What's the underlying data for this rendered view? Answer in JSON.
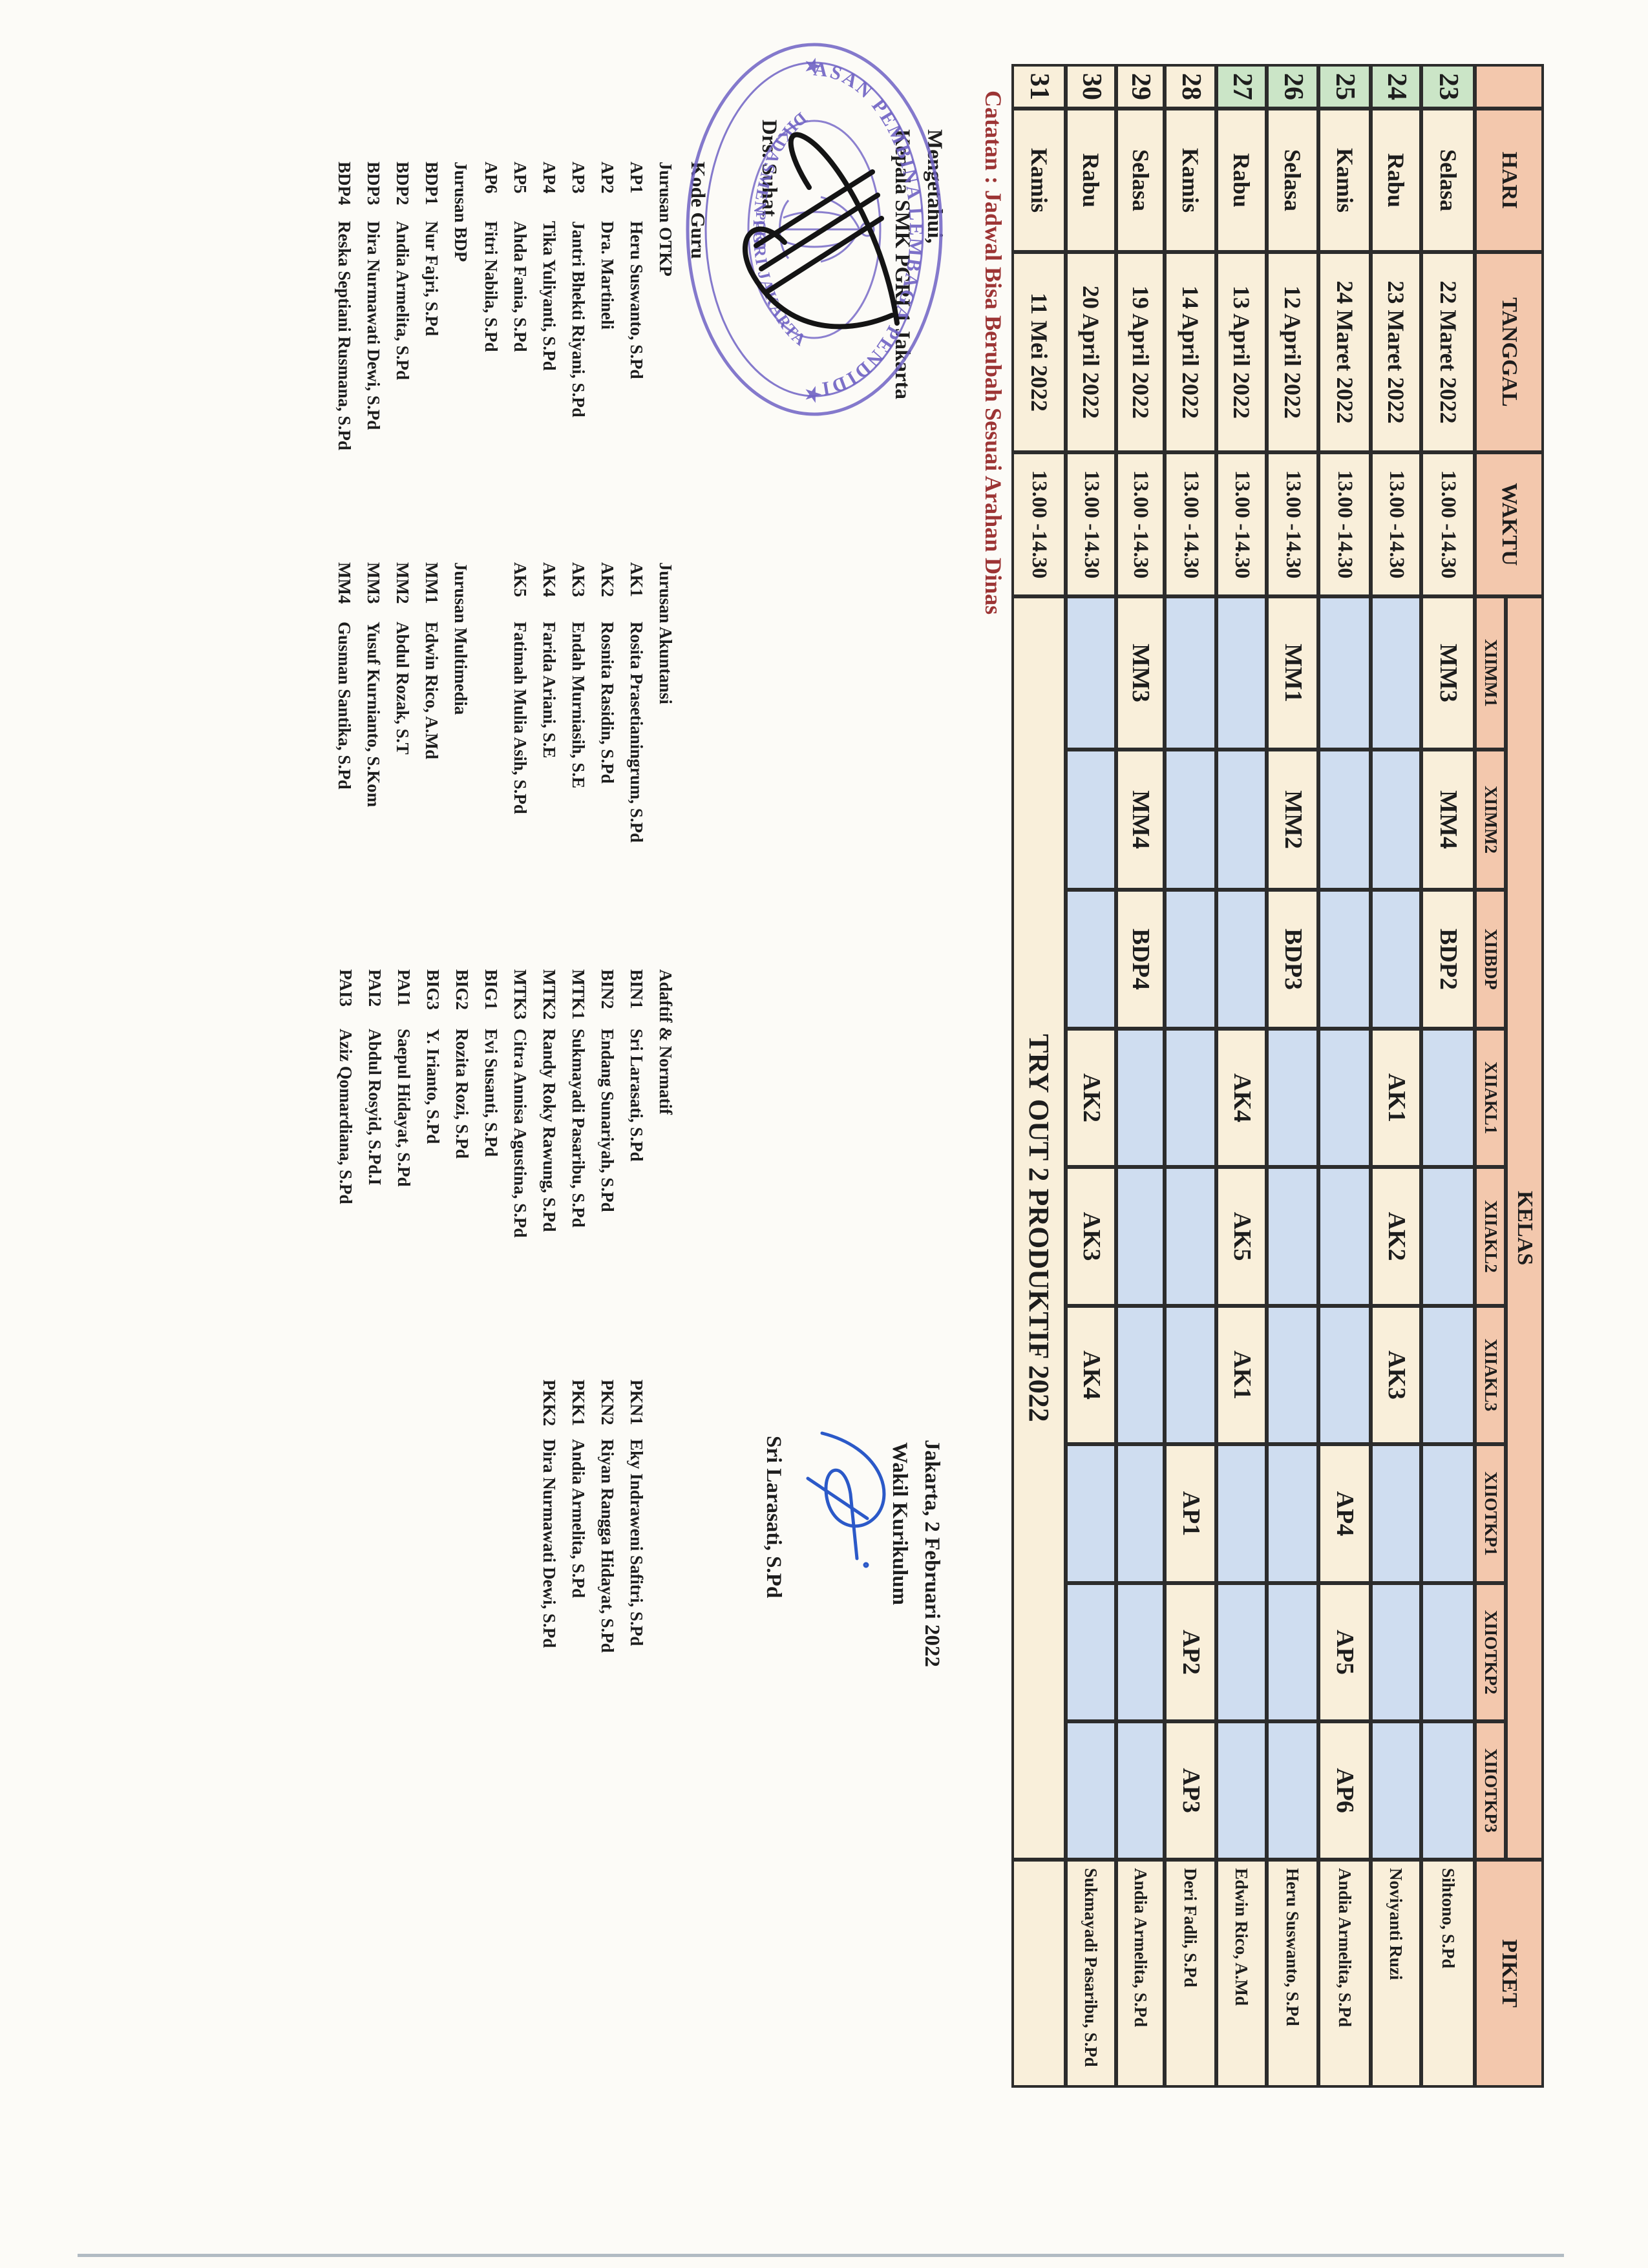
{
  "note": {
    "text": "Catatan : Jadwal Bisa Berubah Sesuai Arahan Dinas"
  },
  "colors": {
    "cream": "#f9efda",
    "green": "#cbe5c7",
    "blue": "#cfddf0",
    "salmon": "#f3c8ad",
    "line": "#2c2c2c",
    "red_note": "#9c3434",
    "stamp_purple": "#6f62c4",
    "pen_blue": "#2b59c8",
    "pen_black": "#141414"
  },
  "table": {
    "header": {
      "no": "",
      "hari": "HARI",
      "tanggal": "TANGGAL",
      "waktu": "WAKTU",
      "kelas": "KELAS",
      "piket": "PIKET",
      "sub": [
        "XIIMM1",
        "XIIMM2",
        "XIIBDP",
        "XIIAKL1",
        "XIIAKL2",
        "XIIAKL3",
        "XIIOTKP1",
        "XIIOTKP2",
        "XIIOTKP3"
      ]
    },
    "rows": [
      {
        "no": "23",
        "hari": "Selasa",
        "tanggal": "22 Maret 2022",
        "waktu": "13.00 -14.30",
        "no_color": "green",
        "kelas": [
          "MM3",
          "MM4",
          "BDP2",
          "",
          "",
          "",
          "",
          "",
          ""
        ],
        "piket": "Sihtono, S.Pd"
      },
      {
        "no": "24",
        "hari": "Rabu",
        "tanggal": "23 Maret 2022",
        "waktu": "13.00 -14.30",
        "no_color": "green",
        "kelas": [
          "",
          "",
          "",
          "AK1",
          "AK2",
          "AK3",
          "",
          "",
          ""
        ],
        "piket": "Noviyanti Ruzi"
      },
      {
        "no": "25",
        "hari": "Kamis",
        "tanggal": "24 Maret 2022",
        "waktu": "13.00 -14.30",
        "no_color": "green",
        "kelas": [
          "",
          "",
          "",
          "",
          "",
          "",
          "AP4",
          "AP5",
          "AP6"
        ],
        "piket": "Andia Armelita, S.Pd"
      },
      {
        "no": "26",
        "hari": "Selasa",
        "tanggal": "12 April 2022",
        "waktu": "13.00 -14.30",
        "no_color": "green",
        "kelas": [
          "MM1",
          "MM2",
          "BDP3",
          "",
          "",
          "",
          "",
          "",
          ""
        ],
        "piket": "Heru Suswanto, S.Pd"
      },
      {
        "no": "27",
        "hari": "Rabu",
        "tanggal": "13 April 2022",
        "waktu": "13.00 -14.30",
        "no_color": "green",
        "kelas": [
          "",
          "",
          "",
          "AK4",
          "AK5",
          "AK1",
          "",
          "",
          ""
        ],
        "piket": "Edwin Rico, A.Md"
      },
      {
        "no": "28",
        "hari": "Kamis",
        "tanggal": "14 April 2022",
        "waktu": "13.00 -14.30",
        "no_color": "cream",
        "kelas": [
          "",
          "",
          "",
          "",
          "",
          "",
          "AP1",
          "AP2",
          "AP3"
        ],
        "piket": "Deri Fadli, S.Pd"
      },
      {
        "no": "29",
        "hari": "Selasa",
        "tanggal": "19 April 2022",
        "waktu": "13.00 -14.30",
        "no_color": "cream",
        "kelas": [
          "MM3",
          "MM4",
          "BDP4",
          "",
          "",
          "",
          "",
          "",
          ""
        ],
        "piket": "Andia Armelita, S.Pd"
      },
      {
        "no": "30",
        "hari": "Rabu",
        "tanggal": "20 April 2022",
        "waktu": "13.00 -14.30",
        "no_color": "cream",
        "kelas": [
          "",
          "",
          "",
          "AK2",
          "AK3",
          "AK4",
          "",
          "",
          ""
        ],
        "piket": "Sukmayadi Pasaribu, S.Pd"
      },
      {
        "no": "31",
        "hari": "Kamis",
        "tanggal": "11 Mei 2022",
        "waktu": "13.00 -14.30",
        "no_color": "cream",
        "kelas_merged": "TRY OUT 2 PRODUKTIF 2022",
        "piket": ""
      }
    ]
  },
  "legend": {
    "title": "Kode Guru",
    "groups": [
      {
        "sections": [
          {
            "header": "Jurusan OTKP",
            "items": [
              [
                "AP1",
                "Heru Suswanto, S.Pd"
              ],
              [
                "AP2",
                "Dra. Martineli"
              ],
              [
                "AP3",
                "Jantri Bhekti Riyani, S.Pd"
              ],
              [
                "AP4",
                "Tika Yuliyanti, S.Pd"
              ],
              [
                "AP5",
                "Ahda Fania, S.Pd"
              ],
              [
                "AP6",
                "Fitri Nabila, S.Pd"
              ]
            ]
          },
          {
            "header": "Jurusan BDP",
            "items": [
              [
                "BDP1",
                "Nur Fajri, S.Pd"
              ],
              [
                "BDP2",
                "Andia Armelita, S.Pd"
              ],
              [
                "BDP3",
                "Dira Nurmawati Dewi, S.Pd"
              ],
              [
                "BDP4",
                "Reska Septiani Rusmana, S.Pd"
              ]
            ]
          }
        ]
      },
      {
        "sections": [
          {
            "header": "Jurusan Akuntansi",
            "items": [
              [
                "AK1",
                "Rosita Prasetianingrum, S.Pd"
              ],
              [
                "AK2",
                "Rosnita Rasidin, S.Pd"
              ],
              [
                "AK3",
                "Endah Murniasih, S.E"
              ],
              [
                "AK4",
                "Farida Ariani, S.E"
              ],
              [
                "AK5",
                "Fatimah Mulia Asih, S.Pd"
              ]
            ]
          },
          {
            "header": "Jurusan Multimedia",
            "items": [
              [
                "MM1",
                "Edwin Rico, A.Md"
              ],
              [
                "MM2",
                "Abdul Rozak, S.T"
              ],
              [
                "MM3",
                "Yusuf Kurnianto, S.Kom"
              ],
              [
                "MM4",
                "Gusman Santika, S.Pd"
              ]
            ]
          }
        ]
      },
      {
        "sections": [
          {
            "header": "Adaftif & Normatif",
            "items": [
              [
                "BIN1",
                "Sri Larasati, S.Pd"
              ],
              [
                "BIN2",
                "Endang Sunariyah, S.Pd"
              ],
              [
                "MTK1",
                "Sukmayadi Pasaribu, S.Pd"
              ],
              [
                "MTK2",
                "Randy Roky Rawung, S.Pd"
              ],
              [
                "MTK3",
                "Citra Annisa Agustina, S.Pd"
              ],
              [
                "BIG1",
                "Evi Susanti, S.Pd"
              ],
              [
                "BIG2",
                "Rozita Rozi, S.Pd"
              ],
              [
                "BIG3",
                "Y. Irianto, S.Pd"
              ],
              [
                "PAI1",
                "Saepul Hidayat, S.Pd"
              ],
              [
                "PAI2",
                "Abdul Rosyid, S.Pd.I"
              ],
              [
                "PAI3",
                "Aziz Qomardiana, S.Pd"
              ]
            ]
          }
        ]
      },
      {
        "sections": [
          {
            "header": "",
            "items": [
              [
                "PKN1",
                "Eky Indraweni Safitri, S.Pd"
              ],
              [
                "PKN2",
                "Riyan Rangga Hidayat, S.Pd"
              ],
              [
                "PKK1",
                "Andia Armelita, S.Pd"
              ],
              [
                "PKK2",
                "Dira Nurmawati Dewi, S.Pd"
              ]
            ]
          }
        ]
      }
    ]
  },
  "signatures": {
    "left": {
      "line1": "Mengetahui,",
      "line2": "Kepala SMK PGRI 1 Jakarta",
      "name": "Drs. Suhat"
    },
    "right": {
      "line1": "Jakarta, 2 Februari 2022",
      "line2": "Wakil Kurikulum",
      "name": "Sri Larasati, S.Pd"
    }
  },
  "stamp": {
    "arc_top": "YAYASAN PEMBINA LEMBAGA PENDIDIKAN",
    "arc_bottom": "DIKDASMEN PGRI JAKARTA",
    "star_left": "★",
    "star_right": "★",
    "center": "PGRI"
  }
}
